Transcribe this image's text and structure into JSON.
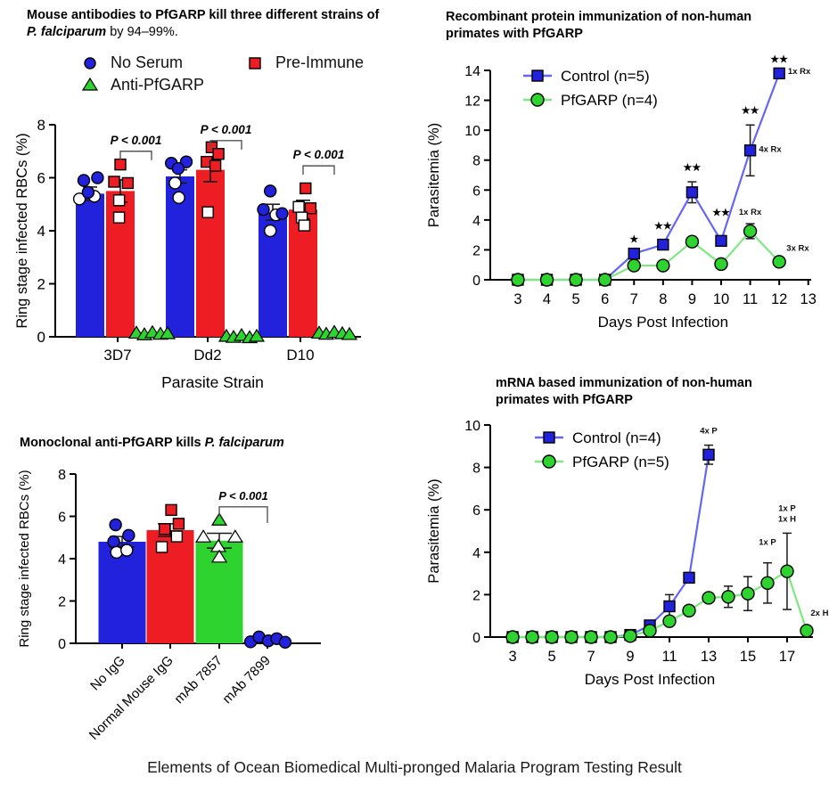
{
  "caption": "Elements of Ocean Biomedical Multi-pronged Malaria Program Testing Result",
  "colors": {
    "blue": "#2222dd",
    "red": "#ee1c23",
    "green": "#2fd32f",
    "blue_line": "#6666f5",
    "green_line": "#7fe87f"
  },
  "panels": {
    "p1": {
      "title_line1": "Mouse antibodies to PfGARP kill three different strains of",
      "title_italic": "P. falciparum",
      "title_after": " by 94–99%.",
      "legend": [
        {
          "label": "No Serum",
          "marker": "circle",
          "color": "blue"
        },
        {
          "label": "Pre-Immune",
          "marker": "square",
          "color": "red"
        },
        {
          "label": "Anti-PfGARP",
          "marker": "triangle",
          "color": "green"
        }
      ]
    },
    "p2": {
      "title_line1": "Recombinant protein immunization of non-human",
      "title_line2": "primates with PfGARP"
    },
    "p3": {
      "title_prefix": "Monoclonal anti-PfGARP kills ",
      "title_italic": "P. falciparum"
    },
    "p4": {
      "title_line1": "mRNA based immunization of non-human",
      "title_line2": "primates with PfGARP"
    }
  },
  "chart_data": [
    {
      "type": "bar",
      "title": "Mouse antibodies to PfGARP kill three different strains of P. falciparum by 94–99%.",
      "categories": [
        "3D7",
        "Dd2",
        "D10"
      ],
      "ylabel": "Ring stage infected RBCs (%)",
      "xlabel": "Parasite Strain",
      "ylim": [
        0,
        8
      ],
      "yticks": [
        0,
        2,
        4,
        6,
        8
      ],
      "series": [
        {
          "name": "No Serum",
          "color": "blue",
          "marker": "circle",
          "values": [
            5.4,
            6.05,
            4.7
          ],
          "errors": [
            0.25,
            0.25,
            0.3
          ],
          "points": [
            [
              [
                -0.5,
                5.9,
                0
              ],
              [
                0.6,
                6.0,
                0
              ],
              [
                -0.85,
                5.2,
                1
              ],
              [
                0.35,
                5.3,
                1
              ],
              [
                -0.15,
                5.45,
                0
              ]
            ],
            [
              [
                -0.7,
                6.55,
                0
              ],
              [
                0.5,
                6.6,
                0
              ],
              [
                -0.15,
                6.35,
                0
              ],
              [
                -0.4,
                5.8,
                1
              ],
              [
                -0.1,
                5.25,
                1
              ]
            ],
            [
              [
                -0.2,
                5.5,
                0
              ],
              [
                -0.75,
                4.8,
                0
              ],
              [
                0.25,
                4.6,
                1
              ],
              [
                0.75,
                4.65,
                0
              ],
              [
                -0.2,
                4.0,
                1
              ]
            ]
          ]
        },
        {
          "name": "Pre-Immune",
          "color": "red",
          "marker": "square",
          "values": [
            5.5,
            6.3,
            4.8
          ],
          "errors": [
            0.42,
            0.45,
            0.35
          ],
          "points": [
            [
              [
                0.0,
                6.5,
                0
              ],
              [
                -0.5,
                5.85,
                0
              ],
              [
                0.6,
                5.8,
                0
              ],
              [
                -0.1,
                5.15,
                1
              ],
              [
                -0.1,
                4.5,
                1
              ]
            ],
            [
              [
                0.1,
                7.15,
                0
              ],
              [
                0.65,
                6.9,
                0
              ],
              [
                -0.3,
                6.6,
                0
              ],
              [
                0.4,
                6.45,
                0
              ],
              [
                -0.2,
                4.7,
                1
              ]
            ],
            [
              [
                0.2,
                5.6,
                0
              ],
              [
                -0.35,
                4.9,
                1
              ],
              [
                0.6,
                4.85,
                0
              ],
              [
                -0.1,
                4.5,
                1
              ],
              [
                0.1,
                4.2,
                1
              ]
            ]
          ]
        },
        {
          "name": "Anti-PfGARP",
          "color": "green",
          "marker": "triangle",
          "values": [
            0.07,
            0.02,
            0.08
          ],
          "errors": [
            0,
            0,
            0
          ],
          "points": [
            [
              [
                -0.85,
                0.12,
                0
              ],
              [
                -0.4,
                0.06,
                0
              ],
              [
                0.05,
                0.14,
                0
              ],
              [
                0.5,
                0.08,
                0
              ],
              [
                0.9,
                0.1,
                0
              ]
            ],
            [
              [
                -0.85,
                0.0,
                0
              ],
              [
                -0.45,
                -0.04,
                0
              ],
              [
                0.0,
                0.03,
                0
              ],
              [
                0.45,
                -0.05,
                0
              ],
              [
                0.85,
                0.0,
                0
              ]
            ],
            [
              [
                -0.85,
                0.12,
                0
              ],
              [
                -0.45,
                0.08,
                0
              ],
              [
                0.0,
                0.15,
                0
              ],
              [
                0.45,
                0.1,
                0
              ],
              [
                0.85,
                0.07,
                0
              ]
            ]
          ]
        }
      ],
      "brackets": [
        {
          "group": 0,
          "y": 7.0,
          "label": "P < 0.001"
        },
        {
          "group": 1,
          "y": 7.4,
          "label": "P < 0.001"
        },
        {
          "group": 2,
          "y": 6.45,
          "label": "P < 0.001"
        }
      ]
    },
    {
      "type": "line",
      "title": "Recombinant protein immunization of non-human primates with PfGARP",
      "ylabel": "Parasitemia (%)",
      "xlabel": "Days Post Infection",
      "ylim": [
        0,
        14
      ],
      "yticks": [
        0,
        2,
        4,
        6,
        8,
        10,
        12,
        14
      ],
      "xticks": [
        3,
        4,
        5,
        6,
        7,
        8,
        9,
        10,
        11,
        12,
        13
      ],
      "xlim": [
        2.05,
        13.1
      ],
      "series": [
        {
          "name": "Control (n=5)",
          "color": "blue",
          "marker": "square",
          "x": [
            3,
            4,
            5,
            6,
            7,
            8,
            9,
            10,
            11,
            12
          ],
          "values": [
            0,
            0,
            0,
            0,
            1.75,
            2.35,
            5.85,
            2.6,
            8.65,
            13.8
          ],
          "errors": [
            0,
            0,
            0,
            0,
            0.15,
            0.3,
            0.7,
            0.25,
            1.7,
            0.3
          ]
        },
        {
          "name": "PfGARP (n=4)",
          "color": "green",
          "marker": "circle",
          "x": [
            3,
            4,
            5,
            6,
            7,
            8,
            9,
            10,
            11,
            12
          ],
          "values": [
            0,
            0,
            0,
            0,
            0.95,
            0.95,
            2.55,
            1.05,
            3.25,
            1.2
          ],
          "errors": [
            0,
            0,
            0,
            0,
            0,
            0,
            0,
            0,
            0.5,
            0
          ]
        }
      ],
      "stars": [
        {
          "x": 7,
          "y": 2.5,
          "text": "★"
        },
        {
          "x": 8,
          "y": 3.4,
          "text": "★★"
        },
        {
          "x": 9,
          "y": 7.3,
          "text": "★★"
        },
        {
          "x": 10,
          "y": 4.3,
          "text": "★★"
        },
        {
          "x": 11,
          "y": 11.1,
          "text": "★★"
        },
        {
          "x": 12,
          "y": 14.55,
          "text": "★★"
        }
      ],
      "labels": [
        {
          "x": 12.3,
          "y": 13.75,
          "text": "1x Rx",
          "anchor": "start"
        },
        {
          "x": 11.3,
          "y": 8.55,
          "text": "4x Rx",
          "anchor": "start"
        },
        {
          "x": 11,
          "y": 4.35,
          "text": "1x Rx",
          "anchor": "middle"
        },
        {
          "x": 12.25,
          "y": 1.95,
          "text": "3x Rx",
          "anchor": "start"
        }
      ]
    },
    {
      "type": "bar",
      "title": "Monoclonal anti-PfGARP kills P. falciparum",
      "ylabel": "Ring stage infected RBCs (%)",
      "ylim": [
        0,
        8
      ],
      "yticks": [
        0,
        2,
        4,
        6,
        8
      ],
      "bars": [
        {
          "label": "No IgG",
          "color": "blue",
          "marker": "circle",
          "value": 4.8,
          "error": 0.25,
          "points": [
            [
              -0.35,
              5.6,
              0
            ],
            [
              0.35,
              5.1,
              0
            ],
            [
              -0.45,
              4.8,
              0
            ],
            [
              -0.3,
              4.3,
              1
            ],
            [
              0.25,
              4.4,
              1
            ]
          ]
        },
        {
          "label": "Normal Mouse IgG",
          "color": "red",
          "marker": "square",
          "value": 5.35,
          "error": 0.3,
          "points": [
            [
              0.05,
              6.3,
              0
            ],
            [
              -0.3,
              5.4,
              0
            ],
            [
              0.45,
              5.65,
              0
            ],
            [
              0.35,
              5.05,
              1
            ],
            [
              -0.45,
              4.55,
              1
            ]
          ]
        },
        {
          "label": "mAb 7857",
          "color": "green",
          "marker": "triangle",
          "value": 4.85,
          "error": 0.35,
          "points": [
            [
              0.0,
              5.8,
              0
            ],
            [
              -0.85,
              5.0,
              1
            ],
            [
              0.85,
              5.0,
              1
            ],
            [
              -0.05,
              4.55,
              1
            ],
            [
              0.0,
              4.05,
              1
            ]
          ]
        },
        {
          "label": "mAb 7899",
          "color": null,
          "marker": "circle",
          "marker_color": "blue",
          "value": 0.05,
          "error": 0,
          "points": [
            [
              -0.9,
              0.07,
              0
            ],
            [
              -0.45,
              0.3,
              0
            ],
            [
              0.05,
              0.12,
              0
            ],
            [
              0.5,
              0.22,
              0
            ],
            [
              0.95,
              0.05,
              0
            ]
          ]
        }
      ],
      "brackets": [
        {
          "from": 2,
          "to": 3,
          "y": 6.45,
          "label": "P < 0.001"
        }
      ]
    },
    {
      "type": "line",
      "title": "mRNA based immunization of non-human primates with PfGARP",
      "ylabel": "Parasitemia (%)",
      "xlabel": "Days Post Infection",
      "ylim": [
        0,
        10
      ],
      "yticks": [
        0,
        2,
        4,
        6,
        8,
        10
      ],
      "xticks": [
        3,
        5,
        7,
        9,
        11,
        13,
        15,
        17
      ],
      "xlim": [
        1.86,
        18.32
      ],
      "series": [
        {
          "name": "Control (n=4)",
          "color": "blue",
          "marker": "square",
          "x": [
            3,
            4,
            5,
            6,
            7,
            8,
            9,
            10,
            11,
            12,
            13
          ],
          "values": [
            0,
            0,
            0,
            0,
            0,
            0,
            0.1,
            0.55,
            1.45,
            2.8,
            8.6
          ],
          "errors": [
            0,
            0,
            0,
            0,
            0,
            0,
            0,
            0,
            0.55,
            0,
            0.45
          ]
        },
        {
          "name": "PfGARP (n=5)",
          "color": "green",
          "marker": "circle",
          "x": [
            3,
            4,
            5,
            6,
            7,
            8,
            9,
            10,
            11,
            12,
            13,
            14,
            15,
            16,
            17,
            18
          ],
          "values": [
            0,
            0,
            0,
            0,
            0,
            0,
            0.05,
            0.3,
            0.75,
            1.25,
            1.85,
            1.9,
            2.05,
            2.55,
            3.1,
            0.3
          ],
          "errors": [
            0,
            0,
            0,
            0,
            0,
            0,
            0,
            0,
            0,
            0,
            0.15,
            0.5,
            0.8,
            0.95,
            1.8,
            0
          ]
        }
      ],
      "stars": [],
      "labels": [
        {
          "x": 13,
          "y": 9.6,
          "text": "4x P",
          "anchor": "middle"
        },
        {
          "x": 16,
          "y": 4.35,
          "text": "1x P",
          "anchor": "middle"
        },
        {
          "x": 17,
          "y": 5.95,
          "text": "1x P",
          "anchor": "middle"
        },
        {
          "x": 17,
          "y": 5.45,
          "text": "1x H",
          "anchor": "middle"
        },
        {
          "x": 18.2,
          "y": 1.0,
          "text": "2x H",
          "anchor": "start"
        }
      ]
    }
  ]
}
